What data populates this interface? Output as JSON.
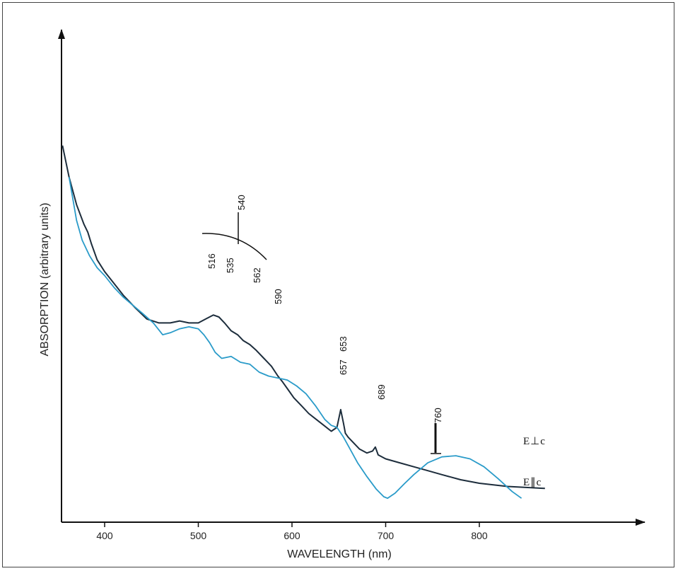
{
  "chart_data": {
    "type": "line",
    "xlabel": "WAVELENGTH (nm)",
    "ylabel": "ABSORPTION (arbitrary units)",
    "xlim": [
      354,
      900
    ],
    "ylim": [
      0,
      100
    ],
    "x_ticks": [
      400,
      500,
      600,
      700,
      800
    ],
    "grid": false,
    "colors": {
      "perpendicular": "#1d2d3c",
      "parallel": "#2a9bc9"
    },
    "series": [
      {
        "name": "E⊥c",
        "x": [
          355,
          362,
          370,
          378,
          382,
          386,
          392,
          400,
          410,
          420,
          432,
          445,
          458,
          470,
          480,
          490,
          500,
          508,
          516,
          522,
          528,
          535,
          542,
          548,
          555,
          562,
          570,
          578,
          585,
          590,
          596,
          602,
          610,
          618,
          626,
          634,
          642,
          648,
          652,
          655,
          657,
          660,
          666,
          672,
          680,
          686,
          689,
          692,
          700,
          715,
          730,
          745,
          760,
          780,
          800,
          830,
          870
        ],
        "y": [
          90,
          82,
          75,
          70,
          68,
          65,
          61,
          58,
          55,
          52,
          49,
          46,
          45,
          45,
          45.5,
          45,
          45,
          46,
          47,
          46.5,
          45,
          43,
          42,
          40.5,
          39.5,
          38,
          36,
          34,
          31.5,
          30,
          28,
          26,
          24,
          22,
          20.5,
          19,
          17.5,
          18.5,
          23,
          19.5,
          17,
          16,
          14.5,
          13,
          12,
          12.5,
          13.5,
          11.5,
          10.5,
          9.5,
          8.5,
          7.5,
          6.5,
          5.2,
          4.3,
          3.5,
          3
        ]
      },
      {
        "name": "E∥c",
        "x": [
          362,
          370,
          376,
          384,
          392,
          400,
          410,
          420,
          430,
          440,
          452,
          462,
          470,
          480,
          490,
          500,
          506,
          512,
          518,
          525,
          535,
          545,
          555,
          565,
          575,
          585,
          595,
          605,
          615,
          625,
          635,
          642,
          648,
          655,
          662,
          670,
          680,
          690,
          698,
          702,
          710,
          720,
          730,
          745,
          760,
          775,
          790,
          805,
          820,
          835,
          845
        ],
        "y": [
          82,
          71,
          66,
          62,
          59,
          57,
          54,
          51.5,
          49.5,
          47.5,
          45,
          42,
          42.5,
          43.5,
          44,
          43.5,
          42,
          40,
          37.5,
          36,
          36.5,
          35,
          34.5,
          32.5,
          31.5,
          31,
          30.5,
          29,
          27,
          24,
          20.5,
          19,
          18.5,
          16,
          13,
          9.5,
          6,
          2.8,
          0.9,
          0.5,
          1.8,
          4.2,
          6.5,
          9.5,
          11,
          11.3,
          10.5,
          8.5,
          5.5,
          2.2,
          0.5
        ]
      }
    ],
    "annotations": [
      {
        "label": "516",
        "x": 516
      },
      {
        "label": "535",
        "x": 535
      },
      {
        "label": "540",
        "x": 540
      },
      {
        "label": "562",
        "x": 562
      },
      {
        "label": "590",
        "x": 590
      },
      {
        "label": "653",
        "x": 653
      },
      {
        "label": "657",
        "x": 657
      },
      {
        "label": "689",
        "x": 689
      },
      {
        "label": "760",
        "x": 760
      }
    ]
  }
}
